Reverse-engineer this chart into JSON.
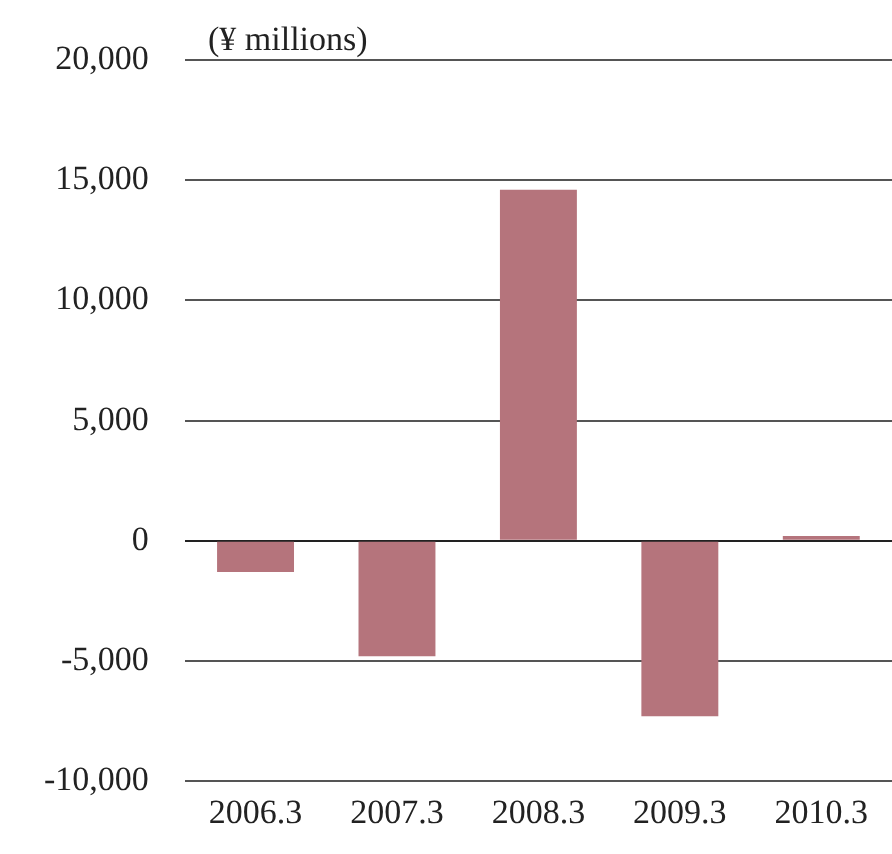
{
  "chart_data": {
    "type": "bar",
    "ylabel": "(¥ millions)",
    "categories": [
      "2006.3",
      "2007.3",
      "2008.3",
      "2009.3",
      "2010.3"
    ],
    "values": [
      -1300,
      -4800,
      14600,
      -7300,
      200
    ],
    "color": "#b5747c",
    "ylim": [
      -10000,
      20000
    ],
    "yticks": [
      {
        "value": -10000,
        "label": "-10,000"
      },
      {
        "value": -5000,
        "label": "-5,000"
      },
      {
        "value": 0,
        "label": "0"
      },
      {
        "value": 5000,
        "label": "5,000"
      },
      {
        "value": 10000,
        "label": "10,000"
      },
      {
        "value": 15000,
        "label": "15,000"
      },
      {
        "value": 20000,
        "label": "20,000"
      }
    ],
    "grid": "y"
  }
}
